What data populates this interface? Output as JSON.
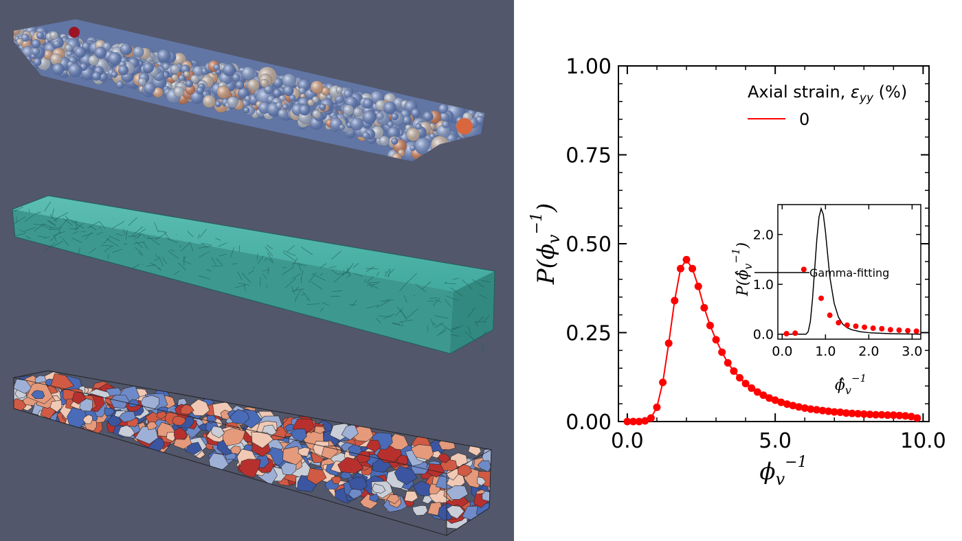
{
  "chart_data": [
    {
      "type": "line",
      "title": "",
      "xlabel": "ϕ_v⁻¹",
      "ylabel": "P(ϕ_v⁻¹)",
      "xlim": [
        -0.3,
        10.2
      ],
      "ylim": [
        0,
        1.0
      ],
      "xticks": [
        0.0,
        5.0,
        10.0
      ],
      "xtick_labels": [
        "0.0",
        "5.0",
        "10.0"
      ],
      "yticks": [
        0.0,
        0.25,
        0.5,
        0.75,
        1.0
      ],
      "ytick_labels": [
        "0.00",
        "0.25",
        "0.50",
        "0.75",
        "1.00"
      ],
      "grid": false,
      "legend": {
        "title": "Axial strain, ε_yy (%)",
        "position": "top-right",
        "entries": [
          "0"
        ]
      },
      "series": [
        {
          "name": "0",
          "color": "#ff0000",
          "x": [
            0.0,
            0.2,
            0.4,
            0.6,
            0.8,
            1.0,
            1.2,
            1.4,
            1.6,
            1.8,
            2.0,
            2.2,
            2.4,
            2.6,
            2.8,
            3.0,
            3.2,
            3.4,
            3.6,
            3.8,
            4.0,
            4.2,
            4.4,
            4.6,
            4.8,
            5.0,
            5.2,
            5.4,
            5.6,
            5.8,
            6.0,
            6.2,
            6.4,
            6.6,
            6.8,
            7.0,
            7.2,
            7.4,
            7.6,
            7.8,
            8.0,
            8.2,
            8.4,
            8.6,
            8.8,
            9.0,
            9.2,
            9.4,
            9.6,
            9.8
          ],
          "y": [
            0.0,
            0.0,
            0.0,
            0.002,
            0.01,
            0.04,
            0.11,
            0.22,
            0.34,
            0.43,
            0.455,
            0.43,
            0.38,
            0.32,
            0.27,
            0.23,
            0.195,
            0.165,
            0.142,
            0.123,
            0.107,
            0.094,
            0.083,
            0.074,
            0.066,
            0.06,
            0.054,
            0.049,
            0.045,
            0.041,
            0.038,
            0.035,
            0.033,
            0.031,
            0.029,
            0.027,
            0.026,
            0.024,
            0.023,
            0.022,
            0.021,
            0.02,
            0.019,
            0.019,
            0.018,
            0.018,
            0.017,
            0.016,
            0.014,
            0.01
          ]
        }
      ]
    },
    {
      "type": "scatter",
      "title": "",
      "xlabel": "ϕ̂_v⁻¹",
      "ylabel": "P(ϕ̂_v⁻¹)",
      "xlim": [
        -0.1,
        3.2
      ],
      "ylim": [
        -0.1,
        2.6
      ],
      "xticks": [
        0.0,
        1.0,
        2.0,
        3.0
      ],
      "xtick_labels": [
        "0.0",
        "1.0",
        "2.0",
        "3.0"
      ],
      "yticks": [
        0.0,
        1.0,
        2.0
      ],
      "ytick_labels": [
        "0.0",
        "1.0",
        "2.0"
      ],
      "legend": {
        "position": "center-left",
        "entries": [
          "Gamma-fitting"
        ]
      },
      "series": [
        {
          "name": "",
          "color": "#ff0000",
          "x": [
            0.1,
            0.3,
            0.5,
            0.9,
            1.1,
            1.3,
            1.5,
            1.7,
            1.9,
            2.1,
            2.3,
            2.5,
            2.7,
            2.9,
            3.1
          ],
          "y": [
            0.01,
            0.02,
            1.3,
            0.72,
            0.38,
            0.23,
            0.18,
            0.16,
            0.14,
            0.12,
            0.11,
            0.09,
            0.08,
            0.07,
            0.06
          ]
        },
        {
          "name": "Gamma-fitting",
          "color": "#000000",
          "x": [
            0.0,
            0.55,
            0.6,
            0.65,
            0.7,
            0.75,
            0.8,
            0.85,
            0.9,
            0.95,
            1.0,
            1.05,
            1.1,
            1.2,
            1.3,
            1.4,
            1.5,
            1.6,
            1.8,
            2.0,
            2.2,
            2.5,
            2.8,
            3.1
          ],
          "y": [
            0.0,
            0.0,
            0.05,
            0.25,
            0.7,
            1.3,
            1.9,
            2.35,
            2.52,
            2.4,
            2.05,
            1.6,
            1.15,
            0.62,
            0.34,
            0.2,
            0.13,
            0.09,
            0.05,
            0.03,
            0.02,
            0.01,
            0.005,
            0.002
          ]
        }
      ]
    }
  ],
  "colors": {
    "viewer_background": "#52576b",
    "curve": "#ff0000",
    "fit_line": "#000000",
    "mesh_teal": "#3fb8a8",
    "cell_red": "#b8302e",
    "cell_blue": "#4a6bb8"
  }
}
